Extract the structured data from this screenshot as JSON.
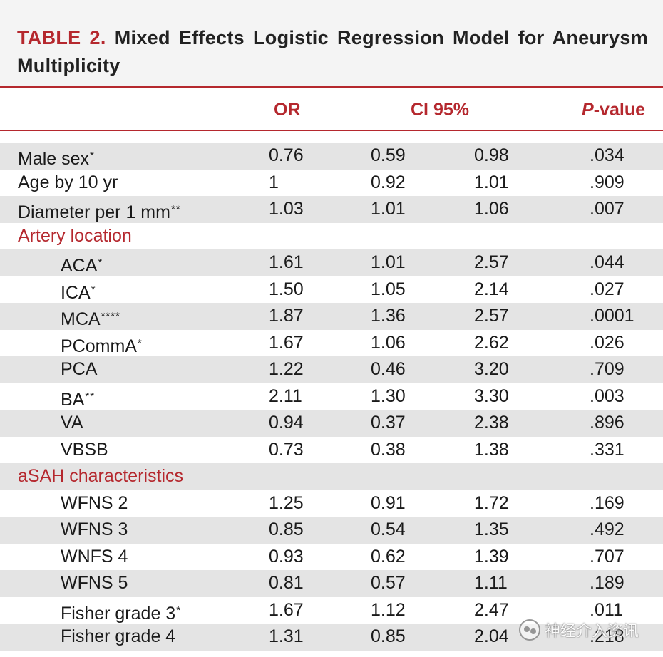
{
  "title": {
    "label": "TABLE 2.",
    "text": "Mixed Effects Logistic Regression Model for Aneurysm Multiplicity"
  },
  "header": {
    "or": "OR",
    "ci": "CI 95%",
    "p_prefix": "P",
    "p_suffix": "-value"
  },
  "rows": [
    {
      "label": "Male sex",
      "stars": "*",
      "or": "0.76",
      "ci_low": "0.59",
      "ci_high": "0.98",
      "p": ".034"
    },
    {
      "label": "Age by 10 yr",
      "stars": "",
      "or": "1",
      "ci_low": "0.92",
      "ci_high": "1.01",
      "p": ".909"
    },
    {
      "label": "Diameter per 1 mm",
      "stars": "**",
      "or": "1.03",
      "ci_low": "1.01",
      "ci_high": "1.06",
      "p": ".007"
    },
    {
      "label": "Artery location",
      "section": true
    },
    {
      "label": "ACA",
      "stars": "*",
      "or": "1.61",
      "ci_low": "1.01",
      "ci_high": "2.57",
      "p": ".044",
      "indent": true
    },
    {
      "label": "ICA",
      "stars": "*",
      "or": "1.50",
      "ci_low": "1.05",
      "ci_high": "2.14",
      "p": ".027",
      "indent": true
    },
    {
      "label": "MCA",
      "stars": "****",
      "or": "1.87",
      "ci_low": "1.36",
      "ci_high": "2.57",
      "p": ".0001",
      "indent": true
    },
    {
      "label": "PCommA",
      "stars": "*",
      "or": "1.67",
      "ci_low": "1.06",
      "ci_high": "2.62",
      "p": ".026",
      "indent": true
    },
    {
      "label": "PCA",
      "stars": "",
      "or": "1.22",
      "ci_low": "0.46",
      "ci_high": "3.20",
      "p": ".709",
      "indent": true
    },
    {
      "label": "BA",
      "stars": "**",
      "or": "2.11",
      "ci_low": "1.30",
      "ci_high": "3.30",
      "p": ".003",
      "indent": true
    },
    {
      "label": "VA",
      "stars": "",
      "or": "0.94",
      "ci_low": "0.37",
      "ci_high": "2.38",
      "p": ".896",
      "indent": true
    },
    {
      "label": "VBSB",
      "stars": "",
      "or": "0.73",
      "ci_low": "0.38",
      "ci_high": "1.38",
      "p": ".331",
      "indent": true
    },
    {
      "label": "aSAH characteristics",
      "section": true
    },
    {
      "label": "WFNS 2",
      "stars": "",
      "or": "1.25",
      "ci_low": "0.91",
      "ci_high": "1.72",
      "p": ".169",
      "indent": true
    },
    {
      "label": "WFNS 3",
      "stars": "",
      "or": "0.85",
      "ci_low": "0.54",
      "ci_high": "1.35",
      "p": ".492",
      "indent": true
    },
    {
      "label": "WNFS 4",
      "stars": "",
      "or": "0.93",
      "ci_low": "0.62",
      "ci_high": "1.39",
      "p": ".707",
      "indent": true
    },
    {
      "label": "WFNS 5",
      "stars": "",
      "or": "0.81",
      "ci_low": "0.57",
      "ci_high": "1.11",
      "p": ".189",
      "indent": true
    },
    {
      "label": "Fisher grade 3",
      "stars": "*",
      "or": "1.67",
      "ci_low": "1.12",
      "ci_high": "2.47",
      "p": ".011",
      "indent": true
    },
    {
      "label": "Fisher grade 4",
      "stars": "",
      "or": "1.31",
      "ci_low": "0.85",
      "ci_high": "2.04",
      "p": ".218",
      "indent": true
    }
  ],
  "watermark": {
    "icon": "wechat-icon",
    "text": "神经介入资讯"
  },
  "colors": {
    "accent": "#b5282e",
    "row_shade": "#e4e4e4",
    "title_bg": "#f4f4f4"
  }
}
